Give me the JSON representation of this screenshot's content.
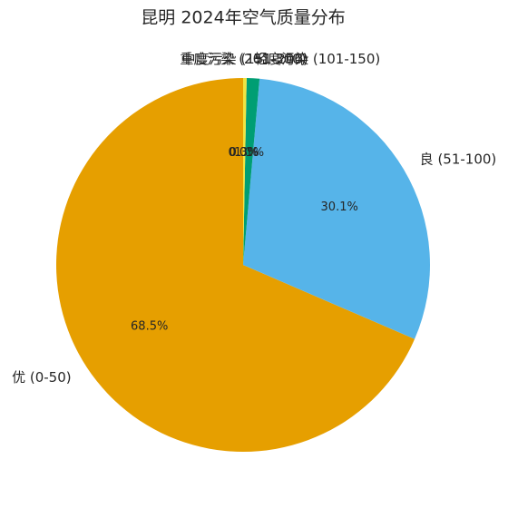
{
  "chart_data": {
    "type": "pie",
    "title": "昆明 2024年空气质量分布",
    "categories": [
      "优 (0-50)",
      "良 (51-100)",
      "轻度污染 (101-150)",
      "中度污染 (151-200)",
      "重度污染 (201-300)"
    ],
    "values": [
      68.5,
      30.1,
      1.1,
      0.3,
      0.0
    ],
    "value_labels": [
      "68.5%",
      "30.1%",
      "1.1%",
      "0.3%",
      "0.0%"
    ],
    "colors": [
      "#E69F00",
      "#56B4E9",
      "#009E73",
      "#F0E442",
      "#D55E00"
    ],
    "start_angle": 90,
    "direction": "counterclockwise"
  }
}
